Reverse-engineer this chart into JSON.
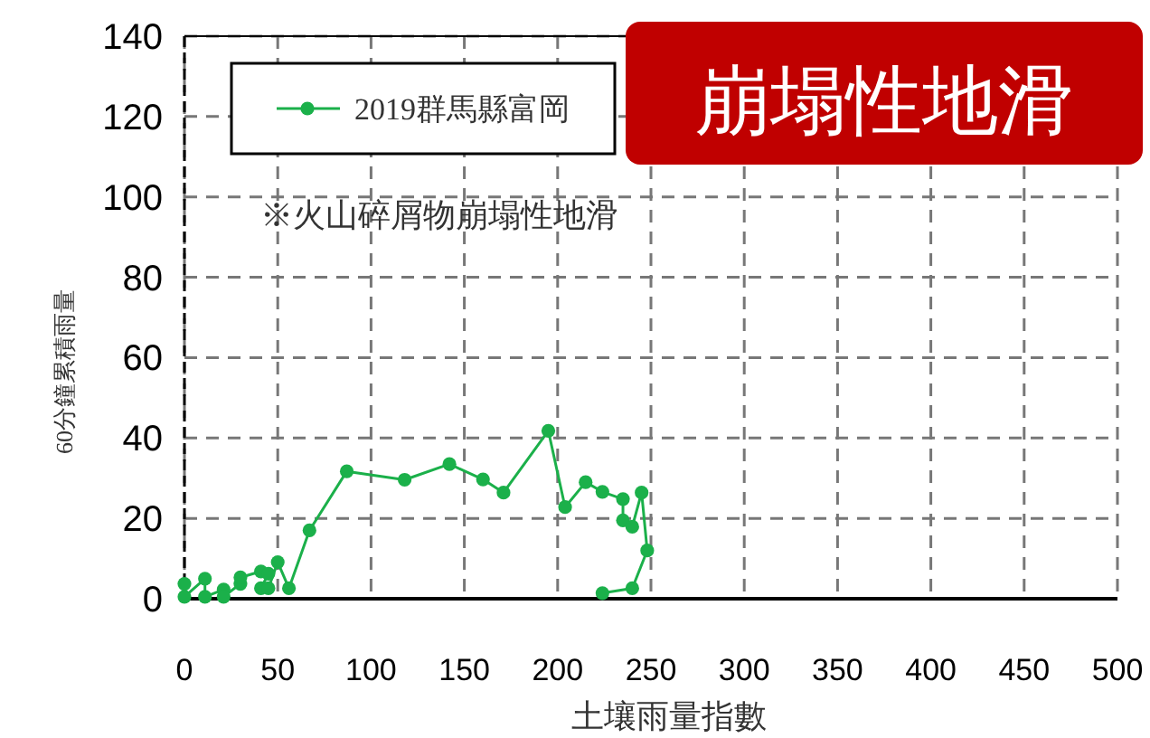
{
  "chart_data": {
    "type": "line",
    "title": "崩塌性地滑",
    "xlabel": "土壤雨量指數",
    "ylabel": "60分鐘累積雨量",
    "annotations": [
      "※火山碎屑物崩塌性地滑"
    ],
    "xlim": [
      0,
      500
    ],
    "xticks": [
      0,
      50,
      100,
      150,
      200,
      250,
      300,
      350,
      400,
      450,
      500
    ],
    "ylim": [
      0,
      140
    ],
    "yticks": [
      0,
      20,
      40,
      60,
      80,
      100,
      120,
      140
    ],
    "grid": true,
    "legend": "top left",
    "marker": "circle",
    "line_style": "solid",
    "series": [
      {
        "name": "2019群馬縣富岡",
        "color": "#1bb04a",
        "x": [
          0,
          0,
          11,
          11,
          21,
          21,
          30,
          30,
          41,
          45,
          41,
          45,
          50,
          56,
          67,
          87,
          118,
          142,
          160,
          171,
          195,
          204,
          215,
          224,
          235,
          235,
          240,
          245,
          248,
          240,
          224
        ],
        "values": [
          3.7,
          0.5,
          5,
          0.5,
          2.3,
          0.5,
          3.7,
          5.3,
          6.8,
          6.2,
          2.6,
          2.6,
          9.1,
          2.6,
          17,
          31.7,
          29.6,
          33.5,
          29.7,
          26.4,
          41.8,
          22.8,
          29,
          26.6,
          24.8,
          19.5,
          17.9,
          26.4,
          12,
          2.6,
          1.4
        ]
      }
    ]
  }
}
